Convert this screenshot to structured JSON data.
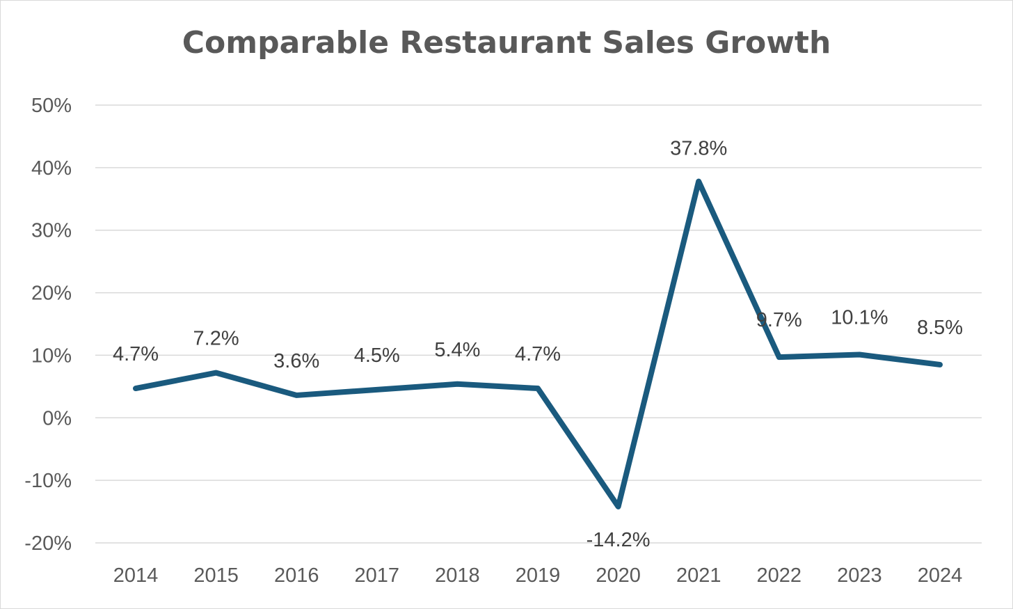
{
  "chart_data": {
    "type": "line",
    "title": "Comparable Restaurant Sales Growth",
    "xlabel": "",
    "ylabel": "",
    "categories": [
      "2014",
      "2015",
      "2016",
      "2017",
      "2018",
      "2019",
      "2020",
      "2021",
      "2022",
      "2023",
      "2024"
    ],
    "series": [
      {
        "values": [
          4.7,
          7.2,
          3.6,
          4.5,
          5.4,
          4.7,
          -14.2,
          37.8,
          9.7,
          10.1,
          8.5
        ],
        "data_labels": [
          "4.7%",
          "7.2%",
          "3.6%",
          "4.5%",
          "5.4%",
          "4.7%",
          "-14.2%",
          "37.8%",
          "9.7%",
          "10.1%",
          "8.5%"
        ],
        "color": "#1a5a7e"
      }
    ],
    "ylim": [
      -20,
      50
    ],
    "y_ticks": [
      50,
      40,
      30,
      20,
      10,
      0,
      -10,
      -20
    ],
    "y_tick_labels": [
      "50%",
      "40%",
      "30%",
      "20%",
      "10%",
      "0%",
      "-10%",
      "-20%"
    ],
    "grid": true,
    "legend": "none",
    "colors": {
      "line": "#1a5a7e",
      "grid": "#d9d9d9",
      "axis_text": "#595959",
      "label_text": "#404040",
      "title_text": "#595959"
    }
  }
}
